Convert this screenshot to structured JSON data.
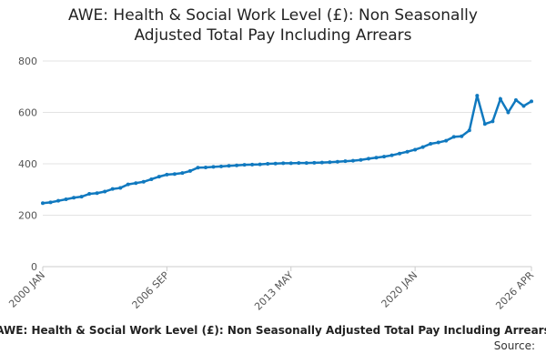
{
  "chart_data": {
    "type": "line",
    "title": "AWE: Health & Social Work Level (£): Non Seasonally Adjusted Total Pay Including Arrears",
    "footer": "AWE: Health & Social Work Level (£): Non Seasonally Adjusted Total Pay Including Arrears",
    "source": "Source:",
    "categories": [
      "2000 JAN",
      null,
      null,
      null,
      null,
      null,
      null,
      null,
      null,
      null,
      null,
      null,
      null,
      null,
      null,
      null,
      "2006 SEP",
      null,
      null,
      null,
      null,
      null,
      null,
      null,
      null,
      null,
      null,
      null,
      null,
      null,
      null,
      null,
      "2013 MAY",
      null,
      null,
      null,
      null,
      null,
      null,
      null,
      null,
      null,
      null,
      null,
      null,
      null,
      null,
      null,
      "2020 JAN",
      null,
      null,
      null,
      null,
      null,
      null,
      null,
      null,
      null,
      null,
      null,
      null,
      null,
      null,
      "2026 APR"
    ],
    "series": [
      {
        "name": "AWE: Health & Social Work Level (£): Non Seasonally Adjusted Total Pay Including Arrears",
        "color": "#1079bf",
        "values": [
          247,
          250,
          256,
          262,
          268,
          272,
          283,
          286,
          292,
          302,
          306,
          320,
          325,
          330,
          340,
          350,
          358,
          360,
          364,
          372,
          385,
          386,
          388,
          390,
          392,
          394,
          396,
          397,
          398,
          400,
          401,
          402,
          402,
          403,
          403,
          404,
          405,
          406,
          408,
          410,
          412,
          415,
          420,
          424,
          428,
          433,
          440,
          447,
          455,
          465,
          478,
          483,
          490,
          505,
          507,
          530,
          665,
          555,
          565,
          652,
          600,
          648,
          625,
          643
        ]
      }
    ],
    "ylim": [
      0,
      800
    ],
    "yticks": [
      0,
      200,
      400,
      600,
      800
    ],
    "grid": true
  }
}
